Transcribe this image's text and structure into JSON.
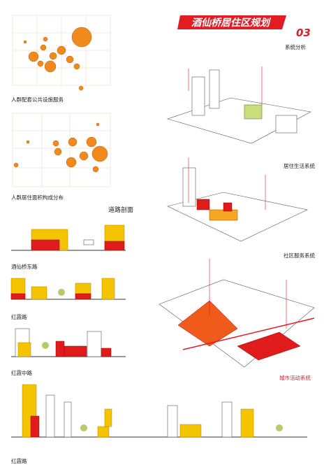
{
  "header": {
    "title": "酒仙桥居住区规划",
    "number": "03",
    "subtitle": "系统分析"
  },
  "left": {
    "chart1_caption": "人群配套公共设施服务",
    "chart2_caption": "人群居住面积构成分布",
    "sections_title": "道路剖面",
    "section1": "酒仙桥东路",
    "section2": "红霞路",
    "section3": "红霞中路",
    "section4": "红霞路"
  },
  "right": {
    "system1": "居住生活系统",
    "system2": "社区服务系统",
    "system3": "城市活动系统"
  }
}
